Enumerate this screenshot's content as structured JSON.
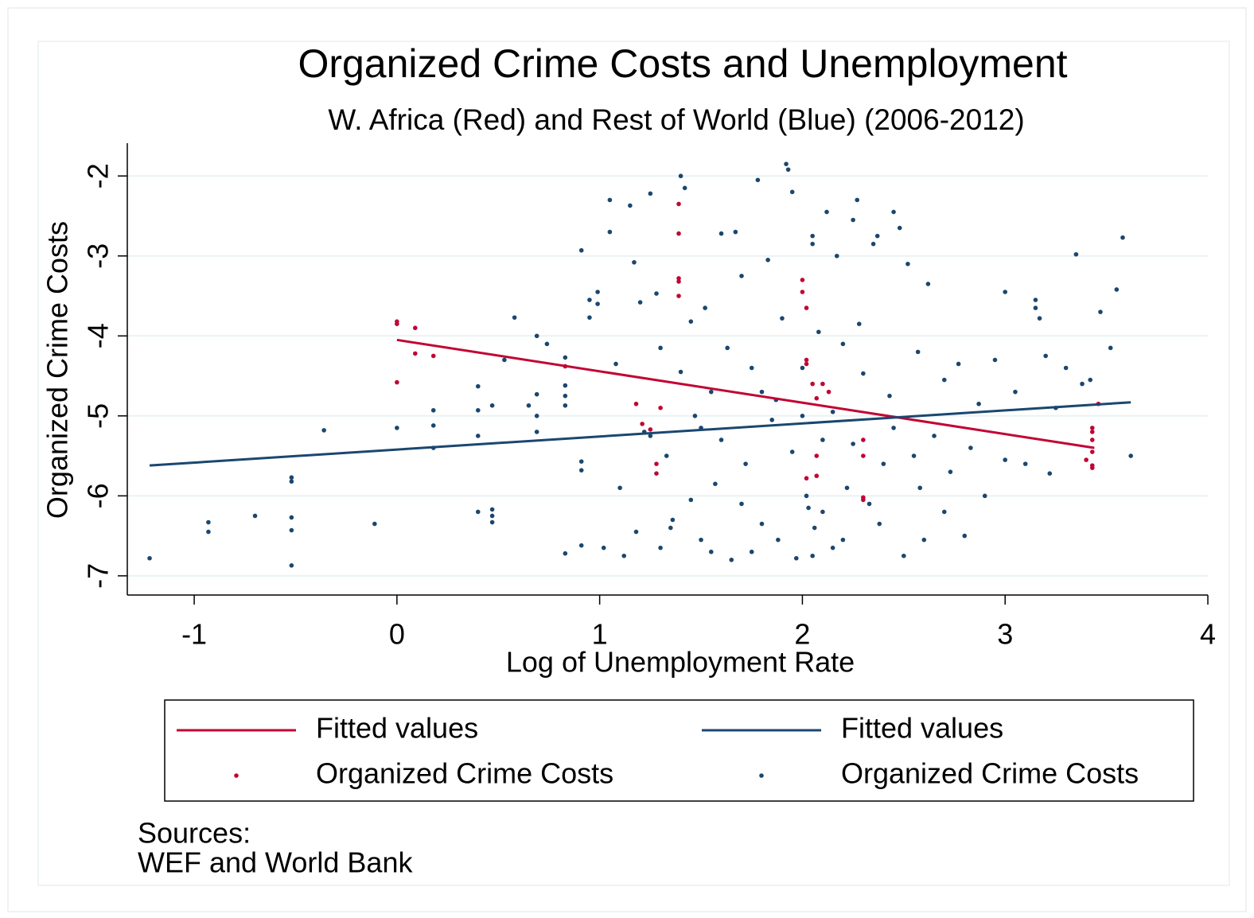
{
  "chart_data": {
    "type": "scatter",
    "title": "Organized Crime Costs and Unemployment",
    "subtitle": "W. Africa (Red) and Rest of World (Blue) (2006-2012)",
    "xlabel": "Log of Unemployment Rate",
    "ylabel": "Organized Crime Costs",
    "notes": [
      "Sources:",
      "WEF and World Bank"
    ],
    "xlim": [
      -1.33,
      4.0
    ],
    "ylim": [
      -7.24,
      -1.59
    ],
    "xticks": [
      -1,
      0,
      1,
      2,
      3,
      4
    ],
    "yticks": [
      -2,
      -3,
      -4,
      -5,
      -6,
      -7
    ],
    "grid": true,
    "series": [
      {
        "name": "Fitted values",
        "type": "line",
        "color": "#c10534",
        "x": [
          0,
          3.44
        ],
        "values": [
          -4.05,
          -5.4
        ]
      },
      {
        "name": "Fitted values",
        "type": "line",
        "color": "#1a476f",
        "x": [
          -1.22,
          3.62
        ],
        "values": [
          -5.62,
          -4.83
        ]
      },
      {
        "name": "Organized Crime Costs",
        "type": "scatter",
        "color": "#c10534",
        "x": [
          0,
          0,
          0.09,
          0.09,
          0.18,
          0,
          0.83,
          1.18,
          1.21,
          1.25,
          1.28,
          1.28,
          1.3,
          1.39,
          1.39,
          1.39,
          1.39,
          1.39,
          2.0,
          2.0,
          2.02,
          2.02,
          2.02,
          2.05,
          2.07,
          2.1,
          2.13,
          2.07,
          2.07,
          2.02,
          2.3,
          2.3,
          2.3,
          2.3,
          3.43,
          3.43,
          3.43,
          3.43,
          3.43,
          3.43,
          3.4,
          3.46
        ],
        "values": [
          -3.82,
          -3.85,
          -3.9,
          -4.22,
          -4.25,
          -4.58,
          -4.38,
          -4.85,
          -5.1,
          -5.17,
          -5.6,
          -5.72,
          -4.9,
          -2.35,
          -2.72,
          -3.28,
          -3.32,
          -3.5,
          -3.3,
          -3.45,
          -3.65,
          -4.3,
          -4.35,
          -4.6,
          -4.78,
          -4.6,
          -4.7,
          -5.5,
          -5.75,
          -5.78,
          -5.3,
          -5.5,
          -6.02,
          -6.05,
          -5.15,
          -5.2,
          -5.3,
          -5.45,
          -5.62,
          -5.65,
          -5.55,
          -4.85
        ]
      },
      {
        "name": "Organized Crime Costs",
        "type": "scatter",
        "color": "#1a476f",
        "x": [
          -1.22,
          -0.93,
          -0.93,
          -0.7,
          -0.52,
          -0.52,
          -0.52,
          -0.52,
          -0.52,
          -0.36,
          -0.11,
          0,
          0.18,
          0.18,
          0.18,
          0.4,
          0.4,
          0.4,
          0.4,
          0.47,
          0.47,
          0.47,
          0.47,
          0.53,
          0.58,
          0.65,
          0.69,
          0.69,
          0.69,
          0.69,
          0.74,
          0.83,
          0.83,
          0.83,
          0.83,
          0.83,
          0.91,
          0.91,
          0.91,
          0.91,
          0.95,
          0.95,
          0.99,
          0.99,
          1.02,
          1.05,
          1.05,
          1.08,
          1.12,
          1.15,
          1.17,
          1.2,
          1.22,
          1.25,
          1.28,
          1.3,
          1.33,
          1.36,
          1.4,
          1.4,
          1.42,
          1.45,
          1.47,
          1.5,
          1.52,
          1.55,
          1.57,
          1.6,
          1.63,
          1.65,
          1.67,
          1.7,
          1.72,
          1.75,
          1.78,
          1.8,
          1.83,
          1.85,
          1.87,
          1.9,
          1.92,
          1.93,
          1.95,
          1.97,
          2.0,
          2.02,
          2.03,
          2.05,
          2.05,
          2.06,
          2.08,
          2.1,
          2.12,
          2.15,
          2.17,
          2.2,
          2.22,
          2.25,
          2.27,
          2.28,
          2.3,
          2.33,
          2.35,
          2.37,
          2.4,
          2.43,
          2.45,
          2.48,
          2.5,
          2.52,
          2.55,
          2.57,
          2.6,
          2.62,
          2.65,
          2.7,
          2.73,
          2.77,
          2.8,
          2.83,
          2.87,
          2.9,
          2.95,
          3.0,
          3.0,
          3.05,
          3.1,
          3.15,
          3.15,
          3.17,
          3.2,
          3.22,
          3.25,
          3.3,
          3.35,
          3.38,
          3.42,
          3.47,
          3.52,
          3.55,
          3.58,
          3.62,
          1.1,
          1.18,
          1.3,
          1.45,
          1.6,
          1.7,
          1.88,
          1.95,
          2.1,
          2.2,
          2.38,
          1.25,
          1.5,
          1.8,
          2.0,
          2.15,
          2.25,
          2.45,
          2.58,
          2.7,
          1.35,
          1.55,
          1.75,
          2.05
        ],
        "values": [
          -6.78,
          -6.33,
          -6.45,
          -6.25,
          -5.77,
          -5.82,
          -6.27,
          -6.43,
          -6.87,
          -5.18,
          -6.35,
          -5.15,
          -4.93,
          -5.12,
          -5.4,
          -4.63,
          -4.93,
          -5.25,
          -6.2,
          -6.17,
          -6.25,
          -6.33,
          -4.87,
          -4.3,
          -3.77,
          -4.87,
          -4.73,
          -5.0,
          -5.2,
          -4.0,
          -4.1,
          -4.27,
          -4.62,
          -4.75,
          -4.87,
          -6.72,
          -2.93,
          -5.57,
          -5.68,
          -6.62,
          -3.55,
          -3.77,
          -3.45,
          -3.6,
          -6.65,
          -2.3,
          -2.7,
          -4.35,
          -6.75,
          -2.37,
          -3.08,
          -3.58,
          -5.2,
          -2.22,
          -3.47,
          -4.15,
          -5.5,
          -6.3,
          -2.0,
          -4.45,
          -2.15,
          -3.82,
          -5.0,
          -6.55,
          -3.65,
          -4.7,
          -5.85,
          -2.72,
          -4.15,
          -6.8,
          -2.7,
          -3.25,
          -5.6,
          -4.4,
          -2.05,
          -6.35,
          -3.05,
          -5.05,
          -4.8,
          -3.78,
          -1.85,
          -1.92,
          -2.2,
          -6.78,
          -4.4,
          -6.0,
          -6.15,
          -2.75,
          -2.85,
          -6.4,
          -3.95,
          -5.3,
          -2.45,
          -6.65,
          -3.0,
          -4.1,
          -5.9,
          -2.55,
          -2.3,
          -3.85,
          -4.47,
          -6.1,
          -2.85,
          -2.75,
          -5.6,
          -4.75,
          -2.45,
          -2.65,
          -6.75,
          -3.1,
          -5.5,
          -4.2,
          -6.55,
          -3.35,
          -5.25,
          -4.55,
          -5.7,
          -4.35,
          -6.5,
          -5.4,
          -4.85,
          -6.0,
          -4.3,
          -3.45,
          -5.55,
          -4.7,
          -5.6,
          -3.55,
          -3.65,
          -3.78,
          -4.25,
          -5.72,
          -4.9,
          -4.4,
          -2.98,
          -4.6,
          -4.55,
          -3.7,
          -4.15,
          -3.42,
          -2.77,
          -5.5,
          -5.9,
          -6.45,
          -6.65,
          -6.05,
          -5.3,
          -6.1,
          -6.55,
          -5.45,
          -6.2,
          -6.55,
          -6.35,
          -5.25,
          -5.15,
          -4.7,
          -5.0,
          -4.95,
          -5.35,
          -5.15,
          -5.9,
          -6.2,
          -6.4,
          -6.7,
          -6.7,
          -6.75
        ]
      }
    ]
  }
}
